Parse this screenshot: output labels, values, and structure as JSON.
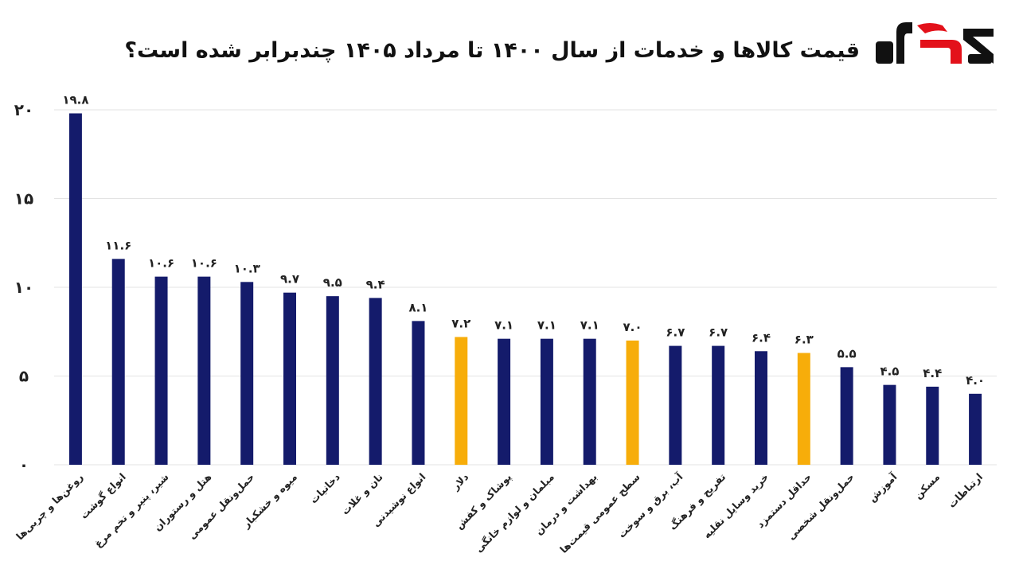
{
  "header": {
    "title": "قیمت کالاها و خدمات از سال ۱۴۰۰ تا مرداد ۱۴۰۵ چندبرابر شده است؟",
    "logo_text": "رکنا"
  },
  "colors": {
    "primary_bar": "#141b6b",
    "highlight_bar": "#f7ad0a",
    "grid": "#e3e3e3",
    "logo_red": "#e3111a",
    "logo_black": "#111111"
  },
  "chart_data": {
    "type": "bar",
    "title": "قیمت کالاها و خدمات از سال ۱۴۰۰ تا مرداد ۱۴۰۵ چندبرابر شده است؟",
    "xlabel": "",
    "ylabel": "",
    "ylim": [
      0,
      20
    ],
    "yticks": [
      "۰",
      "۵",
      "۱۰",
      "۱۵",
      "۲۰"
    ],
    "grid": true,
    "categories": [
      "روغن‌ها و چربی‌ها",
      "انواع گوشت",
      "شیر، پنیر و تخم مرغ",
      "هتل و رستوران",
      "حمل‌ونقل عمومی",
      "میوه و خشکبار",
      "دخانیات",
      "نان و غلات",
      "انواع نوشیدنی",
      "دلار",
      "پوشاک و کفش",
      "مبلمان و لوازم خانگی",
      "بهداشت و درمان",
      "سطح عمومی قیمت‌ها",
      "آب، برق و سوخت",
      "تفریح و فرهنگ",
      "خرید وسایل نقلیه",
      "حداقل دستمزد",
      "حمل‌ونقل شخصی",
      "آموزش",
      "مسکن",
      "ارتباطات"
    ],
    "values": [
      19.8,
      11.6,
      10.6,
      10.6,
      10.3,
      9.7,
      9.5,
      9.4,
      8.1,
      7.2,
      7.1,
      7.1,
      7.1,
      7.0,
      6.7,
      6.7,
      6.4,
      6.3,
      5.5,
      4.5,
      4.4,
      4.0
    ],
    "value_labels": [
      "۱۹.۸",
      "۱۱.۶",
      "۱۰.۶",
      "۱۰.۶",
      "۱۰.۳",
      "۹.۷",
      "۹.۵",
      "۹.۴",
      "۸.۱",
      "۷.۲",
      "۷.۱",
      "۷.۱",
      "۷.۱",
      "۷.۰",
      "۶.۷",
      "۶.۷",
      "۶.۴",
      "۶.۳",
      "۵.۵",
      "۴.۵",
      "۴.۴",
      "۴.۰"
    ],
    "highlight": [
      false,
      false,
      false,
      false,
      false,
      false,
      false,
      false,
      false,
      true,
      false,
      false,
      false,
      true,
      false,
      false,
      false,
      true,
      false,
      false,
      false,
      false
    ]
  }
}
